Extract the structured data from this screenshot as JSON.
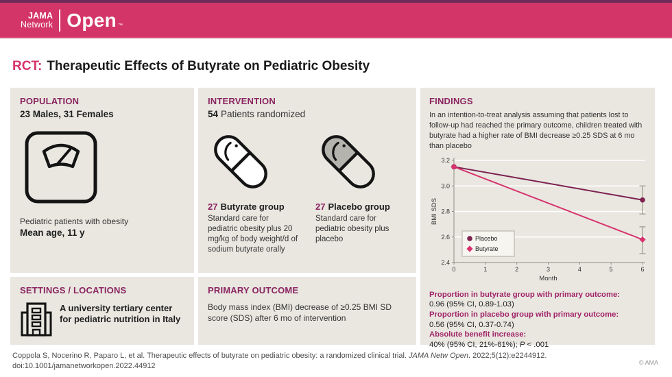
{
  "banner": {
    "logo_line1": "JAMA",
    "logo_line2": "Network",
    "logo_main": "Open",
    "logo_tm": "™"
  },
  "title": {
    "prefix": "RCT:",
    "text": "Therapeutic Effects of Butyrate on Pediatric Obesity"
  },
  "population": {
    "heading": "POPULATION",
    "subtitle": "23 Males, 31 Females",
    "caption1": "Pediatric patients with obesity",
    "caption2": "Mean age, 11 y"
  },
  "settings": {
    "heading": "SETTINGS / LOCATIONS",
    "text": "A university tertiary center for pediatric nutrition in Italy"
  },
  "intervention": {
    "heading": "INTERVENTION",
    "count": "54",
    "count_label": "Patients randomized",
    "groups": [
      {
        "n": "27",
        "name": "Butyrate group",
        "desc": "Standard care for pediatric obesity plus 20 mg/kg of body weight/d of sodium butyrate orally"
      },
      {
        "n": "27",
        "name": "Placebo group",
        "desc": "Standard care for pediatric obesity plus placebo"
      }
    ]
  },
  "primary_outcome": {
    "heading": "PRIMARY OUTCOME",
    "text": "Body mass index (BMI) decrease of ≥0.25 BMI SD score (SDS) after 6 mo of intervention"
  },
  "findings": {
    "heading": "FINDINGS",
    "summary": "In an intention-to-treat analysis assuming that patients lost to follow-up had reached the primary outcome, children treated with butyrate had a higher rate of BMI decrease ≥0.25 SDS at 6 mo than placebo",
    "stats": [
      {
        "label": "Proportion in butyrate group with primary outcome:",
        "value": "0.96 (95% CI, 0.89-1.03)"
      },
      {
        "label": "Proportion in placebo group with primary outcome:",
        "value": "0.56 (95% CI, 0.37-0.74)"
      },
      {
        "label": "Absolute benefit increase:",
        "value": "40% (95% CI, 21%-61%); ",
        "p": "P",
        "p_rest": " < .001"
      }
    ]
  },
  "chart_data": {
    "type": "line",
    "title": "",
    "xlabel": "Month",
    "ylabel": "BMI SDS",
    "xlim": [
      0,
      6
    ],
    "ylim": [
      2.4,
      3.2
    ],
    "xticks": [
      0,
      1,
      2,
      3,
      4,
      5,
      6
    ],
    "yticks": [
      2.4,
      2.6,
      2.8,
      3.0,
      3.2
    ],
    "grid": true,
    "legend_position": "bottom-left",
    "x": [
      0,
      6
    ],
    "series": [
      {
        "name": "Placebo",
        "values": [
          3.15,
          2.89
        ],
        "color": "#7c2150",
        "marker": "circle",
        "error_bars": [
          {
            "x": 6,
            "low": 2.78,
            "high": 3.0
          }
        ]
      },
      {
        "name": "Butyrate",
        "values": [
          3.15,
          2.58
        ],
        "color": "#d7336e",
        "marker": "diamond",
        "error_bars": [
          {
            "x": 6,
            "low": 2.47,
            "high": 2.68
          }
        ]
      }
    ]
  },
  "footer": {
    "citation_pre": "Coppola S, Nocerino R, Paparo L, et al. Therapeutic effects of butyrate on pediatric obesity: a randomized clinical trial. ",
    "citation_journal": "JAMA Netw Open",
    "citation_post": ". 2022;5(12):e2244912.",
    "doi": "doi:10.1001/jamanetworkopen.2022.44912",
    "copyright": "© AMA"
  },
  "colors": {
    "banner_pink": "#d43568",
    "top_strip_purple": "#6e2a5b",
    "heading_magenta": "#8b2461",
    "stat_label_magenta": "#a12368",
    "title_accent_pink": "#d6336c",
    "panel_background": "#e9e7e0",
    "placebo_line": "#7c2150",
    "butyrate_line": "#d7336e"
  }
}
